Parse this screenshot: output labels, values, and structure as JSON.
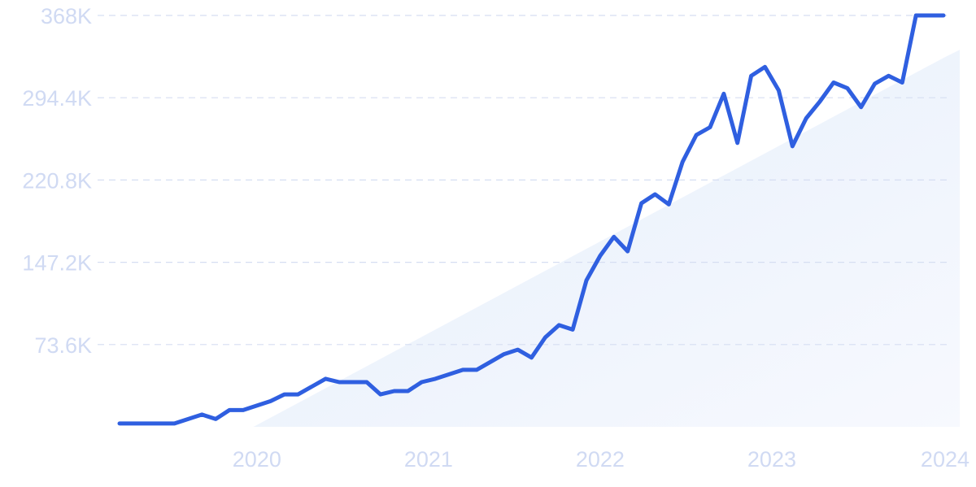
{
  "chart_data": {
    "type": "line",
    "title": "",
    "xlabel": "",
    "ylabel": "",
    "grid": true,
    "y_ticks": [
      "368K",
      "294.4K",
      "220.8K",
      "147.2K",
      "73.6K"
    ],
    "y_tick_values": [
      368000,
      294400,
      220800,
      147200,
      73600
    ],
    "x_ticks": [
      "2020",
      "2021",
      "2022",
      "2023",
      "2024"
    ],
    "x_tick_values": [
      2020,
      2021,
      2022,
      2023,
      2024
    ],
    "xlim": [
      2019.2,
      2024.0
    ],
    "ylim": [
      0,
      368000
    ],
    "colors": {
      "line": "#2f5fe0",
      "trend_fill": "#eaf1fc",
      "tick_text": "#d0daf3",
      "grid": "#d6def2"
    },
    "trend_area": {
      "x": [
        2019.98,
        2024.0
      ],
      "y": [
        0,
        330000
      ]
    },
    "series": [
      {
        "x": [
          2019.2,
          2019.28,
          2019.36,
          2019.44,
          2019.52,
          2019.6,
          2019.68,
          2019.76,
          2019.84,
          2019.92,
          2020.0,
          2020.08,
          2020.16,
          2020.24,
          2020.32,
          2020.4,
          2020.48,
          2020.56,
          2020.64,
          2020.72,
          2020.8,
          2020.88,
          2020.96,
          2021.04,
          2021.12,
          2021.2,
          2021.28,
          2021.36,
          2021.44,
          2021.52,
          2021.6,
          2021.68,
          2021.76,
          2021.84,
          2021.92,
          2022.0,
          2022.08,
          2022.16,
          2022.24,
          2022.32,
          2022.4,
          2022.48,
          2022.56,
          2022.64,
          2022.72,
          2022.8,
          2022.88,
          2022.96,
          2023.04,
          2023.12,
          2023.2,
          2023.28,
          2023.36,
          2023.44,
          2023.52,
          2023.6,
          2023.68,
          2023.76,
          2023.84,
          2023.92,
          2024.0
        ],
        "values": [
          3000,
          3000,
          3000,
          3000,
          3000,
          7000,
          11000,
          7000,
          15000,
          15000,
          19000,
          23000,
          29000,
          29000,
          36000,
          43000,
          40000,
          40000,
          40000,
          29000,
          32000,
          32000,
          40000,
          43000,
          47000,
          51000,
          51000,
          58000,
          65000,
          69000,
          62000,
          80000,
          91000,
          87000,
          131000,
          153000,
          170000,
          157000,
          200000,
          208000,
          199000,
          237000,
          261000,
          268000,
          298000,
          254000,
          314000,
          322000,
          301000,
          251000,
          276000,
          291000,
          308000,
          303000,
          286000,
          307000,
          314000,
          308000,
          368000,
          368000,
          368000
        ]
      }
    ]
  }
}
